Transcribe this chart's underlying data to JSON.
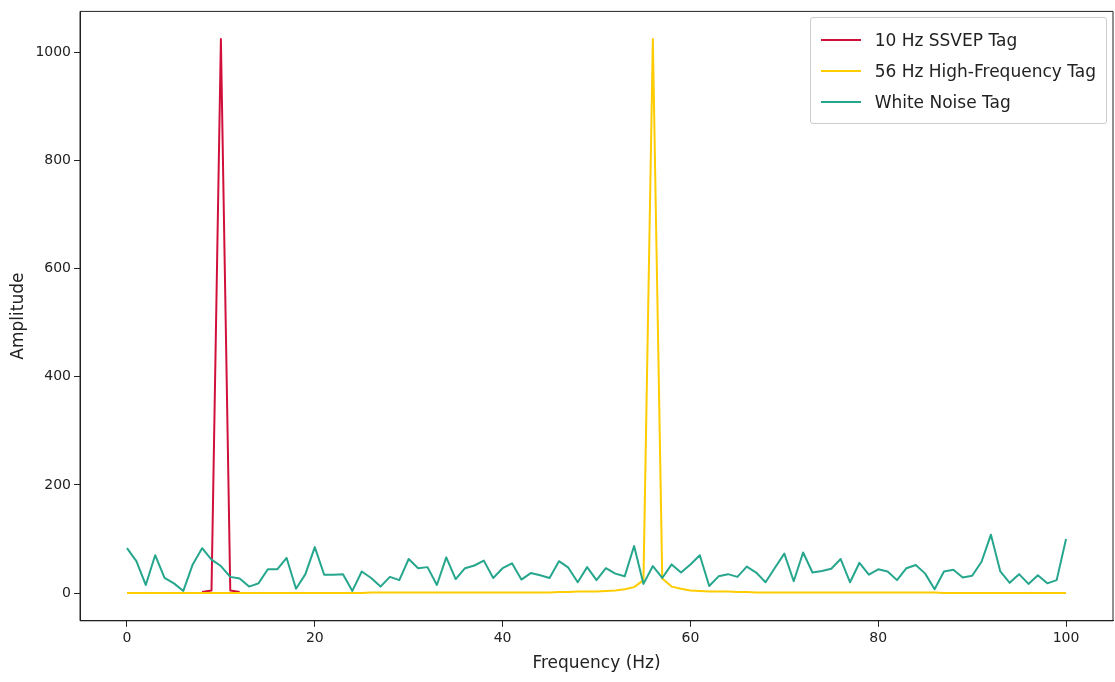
{
  "chart_data": {
    "type": "line",
    "xlabel": "Frequency (Hz)",
    "ylabel": "Amplitude",
    "x": [
      0,
      1,
      2,
      3,
      4,
      5,
      6,
      7,
      8,
      9,
      10,
      11,
      12,
      13,
      14,
      15,
      16,
      17,
      18,
      19,
      20,
      21,
      22,
      23,
      24,
      25,
      26,
      27,
      28,
      29,
      30,
      31,
      32,
      33,
      34,
      35,
      36,
      37,
      38,
      39,
      40,
      41,
      42,
      43,
      44,
      45,
      46,
      47,
      48,
      49,
      50,
      51,
      52,
      53,
      54,
      55,
      56,
      57,
      58,
      59,
      60,
      61,
      62,
      63,
      64,
      65,
      66,
      67,
      68,
      69,
      70,
      71,
      72,
      73,
      74,
      75,
      76,
      77,
      78,
      79,
      80,
      81,
      82,
      83,
      84,
      85,
      86,
      87,
      88,
      89,
      90,
      91,
      92,
      93,
      94,
      95,
      96,
      97,
      98,
      99,
      100
    ],
    "series": [
      {
        "name": "10 Hz SSVEP Tag",
        "color": "#d0103a",
        "values": [
          null,
          null,
          null,
          null,
          null,
          null,
          null,
          null,
          2,
          5,
          1024,
          5,
          2,
          null,
          null,
          null,
          null,
          null,
          null,
          null,
          null,
          null,
          null,
          null,
          null,
          null,
          null,
          null,
          null,
          null,
          null,
          null,
          null,
          null,
          null,
          null,
          null,
          null,
          null,
          null,
          null,
          null,
          null,
          null,
          null,
          null,
          null,
          null,
          null,
          null,
          null,
          null,
          null,
          null,
          null,
          null,
          null,
          null,
          null,
          null,
          null,
          null,
          null,
          null,
          null,
          null,
          null,
          null,
          null,
          null,
          null,
          null,
          null,
          null,
          null,
          null,
          null,
          null,
          null,
          null,
          null,
          null,
          null,
          null,
          null,
          null,
          null,
          null,
          null,
          null,
          null,
          null,
          null,
          null,
          null,
          null,
          null,
          null,
          null,
          null,
          null
        ]
      },
      {
        "name": "56 Hz High-Frequency Tag",
        "color": "#ffcc00",
        "values": [
          0,
          0,
          0,
          0,
          0,
          0,
          0,
          0,
          0,
          0,
          0,
          0,
          0,
          0,
          0,
          0,
          0,
          0,
          0,
          0,
          0,
          0,
          0,
          0,
          0,
          0,
          1,
          1,
          1,
          1,
          1,
          1,
          1,
          1,
          1,
          1,
          1,
          1,
          1,
          1,
          1,
          1,
          1,
          1,
          1,
          1,
          2,
          2,
          3,
          3,
          3,
          4,
          5,
          7,
          11,
          24,
          1024,
          27,
          12,
          8,
          5,
          4,
          3,
          3,
          3,
          2,
          2,
          1,
          1,
          1,
          1,
          1,
          1,
          1,
          1,
          1,
          1,
          1,
          1,
          1,
          1,
          1,
          1,
          1,
          1,
          1,
          1,
          0,
          0,
          0,
          0,
          0,
          0,
          0,
          0,
          0,
          0,
          0,
          0,
          0,
          0
        ]
      },
      {
        "name": "White Noise Tag",
        "color": "#26a68c",
        "values": [
          83,
          59,
          15,
          70,
          28,
          18,
          4,
          53,
          83,
          62,
          50,
          30,
          27,
          12,
          18,
          44,
          44,
          65,
          8,
          35,
          85,
          34,
          34,
          35,
          4,
          40,
          28,
          12,
          30,
          24,
          63,
          46,
          48,
          15,
          66,
          26,
          46,
          51,
          60,
          28,
          46,
          55,
          25,
          37,
          33,
          28,
          59,
          47,
          20,
          48,
          24,
          46,
          36,
          31,
          87,
          17,
          50,
          28,
          53,
          38,
          53,
          70,
          13,
          31,
          35,
          30,
          49,
          38,
          20,
          47,
          73,
          22,
          75,
          38,
          41,
          45,
          63,
          20,
          56,
          34,
          44,
          40,
          24,
          46,
          52,
          36,
          7,
          40,
          43,
          29,
          32,
          58,
          108,
          40,
          19,
          35,
          17,
          33,
          18,
          24,
          100
        ]
      }
    ],
    "xlim": [
      -5,
      105
    ],
    "xticks": [
      0,
      20,
      40,
      60,
      80,
      100
    ],
    "ylim": [
      -51.2,
      1075.2
    ],
    "yticks": [
      0,
      200,
      400,
      600,
      800,
      1000
    ],
    "legend": "top right"
  }
}
